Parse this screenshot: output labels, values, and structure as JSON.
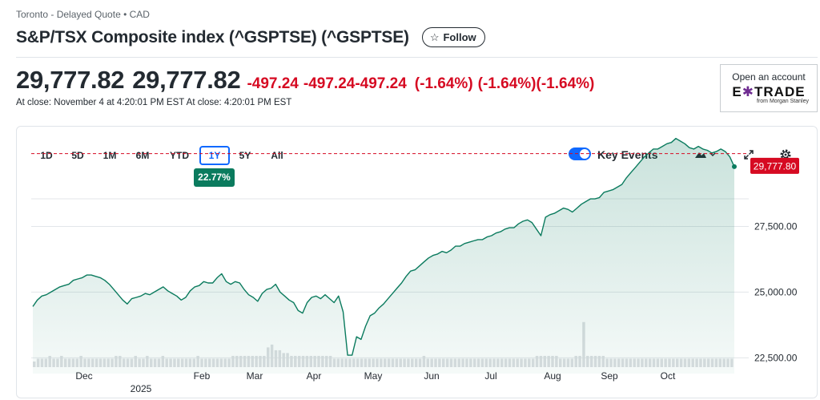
{
  "header": {
    "exchange": "Toronto - Delayed Quote • CAD",
    "title": "S&P/TSX Composite index (^GSPTSE) (^GSPTSE)",
    "follow_label": "Follow"
  },
  "quote": {
    "price_a": "29,777.82",
    "price_b": "29,777.82",
    "change_a": "-497.24",
    "change_b": "-497.24",
    "change_c": "-497.24",
    "pct_a": "(-1.64%)",
    "pct_b": "(-1.64%)",
    "pct_c": "(-1.64%)",
    "close_text": "At close: November 4 at 4:20:01 PM EST At close: 4:20:01 PM EST"
  },
  "ad": {
    "open_label": "Open an account",
    "brand_left": "E",
    "brand_star": "✱",
    "brand_right": "TRADE",
    "brand_sub": "from Morgan Stanley"
  },
  "ranges": [
    "1D",
    "5D",
    "1M",
    "6M",
    "YTD",
    "1Y",
    "5Y",
    "All"
  ],
  "active_range": "1Y",
  "range_change": "22.77%",
  "controls": {
    "key_events_label": "Key Events",
    "key_events_on": true
  },
  "colors": {
    "line": "#0b7b5e",
    "negative": "#d60a22",
    "accent": "#0f69ff"
  },
  "chart_data": {
    "type": "area",
    "y_ticks": [
      "27,500.00",
      "25,000.00",
      "22,500.00"
    ],
    "last_value_label": "29,777.80",
    "reference_value": 30275,
    "x_labels": [
      "Dec",
      "2025",
      "Feb",
      "Mar",
      "Apr",
      "May",
      "Jun",
      "Jul",
      "Aug",
      "Sep",
      "Oct"
    ],
    "ylim": [
      21900,
      31300
    ],
    "series": [
      {
        "values": [
          24450,
          24700,
          24850,
          24900,
          25000,
          25100,
          25200,
          25250,
          25300,
          25450,
          25500,
          25550,
          25650,
          25650,
          25600,
          25550,
          25450,
          25300,
          25100,
          24900,
          24700,
          24550,
          24750,
          24800,
          24850,
          24950,
          24900,
          25000,
          25100,
          25200,
          25050,
          24950,
          24850,
          24700,
          24800,
          25050,
          25200,
          25250,
          25400,
          25350,
          25350,
          25550,
          25700,
          25400,
          25300,
          25400,
          25350,
          25100,
          24900,
          24800,
          24650,
          24950,
          25100,
          25150,
          25300,
          25000,
          24850,
          24700,
          24600,
          24300,
          24200,
          24600,
          24800,
          24850,
          24750,
          24900,
          24750,
          24600,
          24850,
          24250,
          22600,
          22600,
          23300,
          23200,
          23700,
          24100,
          24200,
          24400,
          24550,
          24750,
          24950,
          25150,
          25350,
          25600,
          25800,
          25850,
          26000,
          26150,
          26300,
          26400,
          26450,
          26550,
          26500,
          26600,
          26750,
          26750,
          26850,
          26900,
          26950,
          27000,
          27000,
          27100,
          27150,
          27250,
          27300,
          27400,
          27450,
          27450,
          27600,
          27700,
          27750,
          27650,
          27400,
          27150,
          27850,
          27950,
          28000,
          28100,
          28200,
          28150,
          28050,
          28200,
          28350,
          28450,
          28550,
          28550,
          28600,
          28800,
          28850,
          28900,
          29000,
          29100,
          29350,
          29550,
          29750,
          29950,
          30150,
          30300,
          30450,
          30450,
          30550,
          30650,
          30700,
          30850,
          30750,
          30650,
          30500,
          30450,
          30550,
          30450,
          30400,
          30300,
          30350,
          30450,
          30350,
          30150,
          29777.8
        ]
      }
    ],
    "volume_scale_max": 16.5,
    "volume": [
      2,
      3,
      3,
      3,
      4,
      3,
      3,
      4,
      3,
      3,
      3,
      3,
      4,
      3,
      3,
      3,
      3,
      3,
      3,
      3,
      3,
      4,
      4,
      3,
      3,
      3,
      4,
      3,
      3,
      4,
      3,
      3,
      3,
      4,
      3,
      3,
      3,
      3,
      3,
      3,
      3,
      3,
      4,
      3,
      3,
      3,
      3,
      3,
      3,
      3,
      3,
      4,
      4,
      4,
      4,
      4,
      4,
      4,
      4,
      4,
      7,
      8,
      6,
      6,
      5,
      5,
      4,
      4,
      4,
      4,
      4,
      4,
      4,
      4,
      4,
      4,
      4,
      3,
      3,
      3,
      3,
      3,
      3,
      3,
      3,
      3,
      3,
      3,
      3,
      3,
      3,
      3,
      3,
      3,
      3,
      3,
      3,
      3,
      3,
      3,
      4,
      3,
      3,
      3,
      3,
      3,
      3,
      3,
      3,
      3,
      3,
      3,
      3,
      3,
      3,
      3,
      3,
      3,
      3,
      3,
      3,
      3,
      3,
      3,
      3,
      3,
      3,
      3,
      3,
      4,
      4,
      4,
      4,
      4,
      4,
      3,
      3,
      3,
      3,
      4,
      4,
      16,
      4,
      4,
      4,
      4,
      4,
      3,
      3,
      3,
      3,
      3,
      3,
      3,
      3,
      3,
      3,
      3,
      3,
      3,
      3,
      3,
      3,
      3,
      3,
      3,
      3,
      3,
      3,
      3,
      3,
      3,
      3,
      3,
      3,
      3,
      3,
      3,
      3,
      3
    ]
  }
}
